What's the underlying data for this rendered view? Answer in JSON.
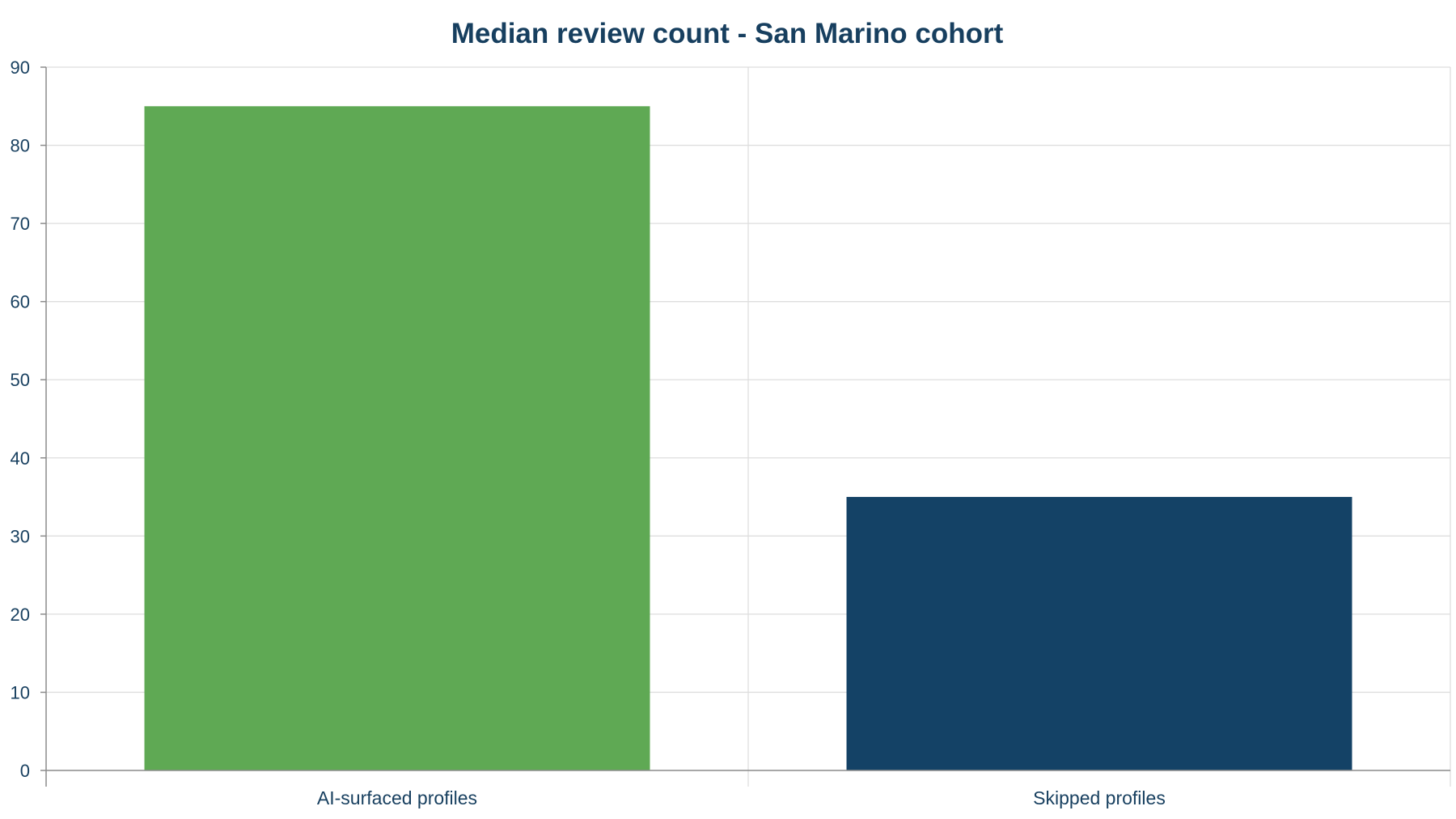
{
  "chart_data": {
    "type": "bar",
    "title": "Median review count - San Marino cohort",
    "xlabel": "",
    "ylabel": "",
    "categories": [
      "AI-surfaced profiles",
      "Skipped profiles"
    ],
    "values": [
      85,
      35
    ],
    "colors": [
      "#5fa954",
      "#144266"
    ],
    "ylim": [
      0,
      90
    ],
    "yticks": [
      "0",
      "10",
      "20",
      "30",
      "40",
      "50",
      "60",
      "70",
      "80",
      "90"
    ],
    "grid": true,
    "legend": "none"
  }
}
